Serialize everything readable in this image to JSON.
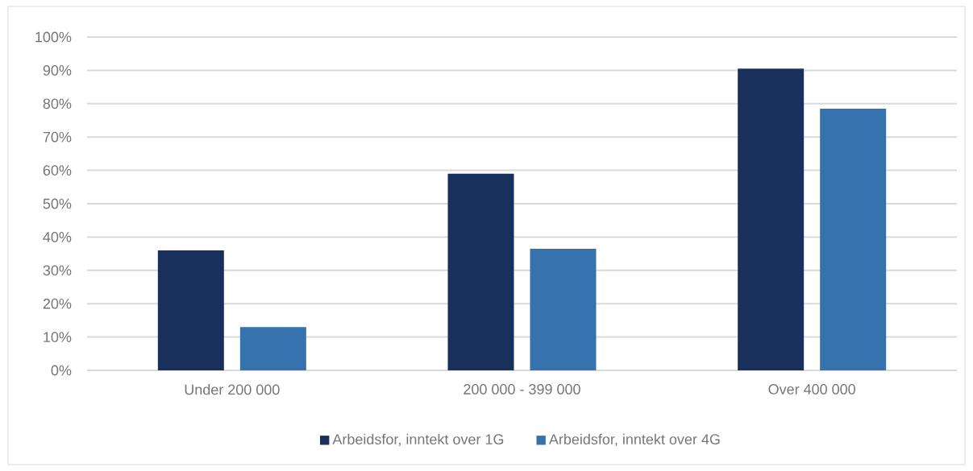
{
  "chart_data": {
    "type": "bar",
    "categories": [
      "Under 200 000",
      "200 000 - 399 000",
      "Over 400 000"
    ],
    "series": [
      {
        "name": "Arbeidsfor, inntekt over 1G",
        "color": "#19305d",
        "values": [
          36,
          59,
          90.5
        ]
      },
      {
        "name": "Arbeidsfor, inntekt over 4G",
        "color": "#3672ae",
        "values": [
          13,
          36.5,
          78.5
        ]
      }
    ],
    "ylim": [
      0,
      100
    ],
    "yticks": [
      {
        "value": 0,
        "label": "0%"
      },
      {
        "value": 10,
        "label": "10%"
      },
      {
        "value": 20,
        "label": "20%"
      },
      {
        "value": 30,
        "label": "30%"
      },
      {
        "value": 40,
        "label": "40%"
      },
      {
        "value": 50,
        "label": "50%"
      },
      {
        "value": 60,
        "label": "60%"
      },
      {
        "value": 70,
        "label": "70%"
      },
      {
        "value": 80,
        "label": "80%"
      },
      {
        "value": 90,
        "label": "90%"
      },
      {
        "value": 100,
        "label": "100%"
      }
    ],
    "grid": "y",
    "legend": "bottom"
  }
}
